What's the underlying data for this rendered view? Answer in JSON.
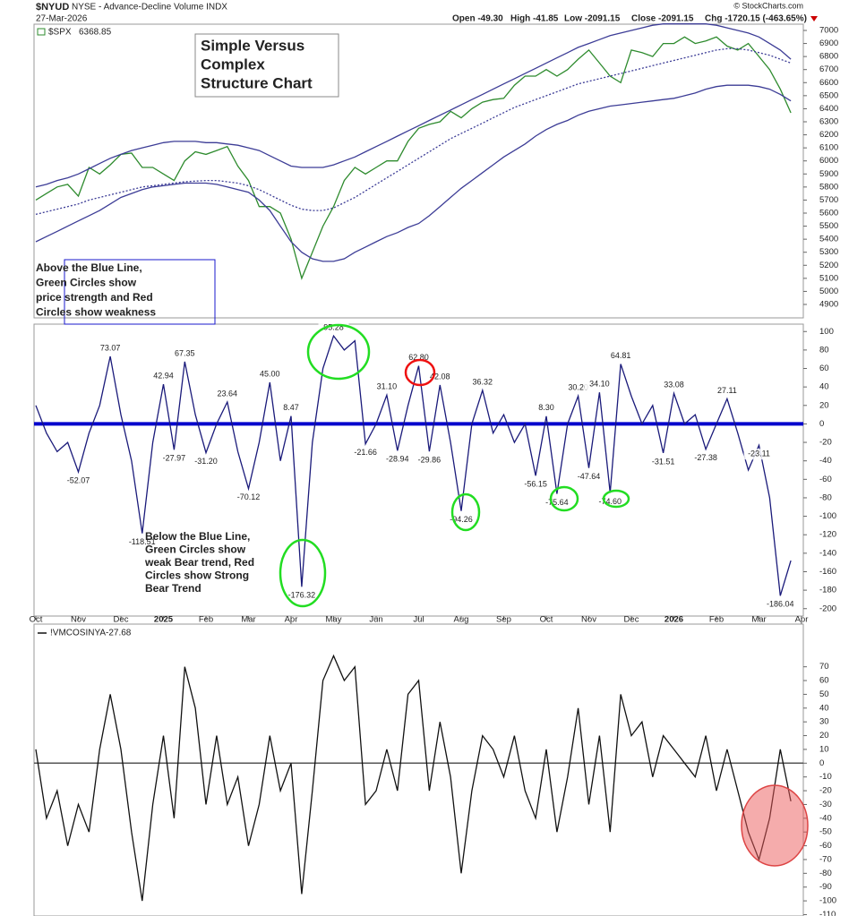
{
  "header": {
    "symbol": "$NYUD",
    "description": "NYSE - Advance-Decline Volume INDX",
    "date": "27-Mar-2026",
    "source": "© StockCharts.com",
    "open": "Open -49.30",
    "high": "High -41.85",
    "low": "Low -2091.15",
    "close": "Close -2091.15",
    "change": "Chg -1720.15 (-463.65%)"
  },
  "chart_data": [
    {
      "type": "line",
      "ylim": [
        4797,
        7048
      ],
      "yticks": [
        4900,
        5000,
        5100,
        5200,
        5300,
        5400,
        5500,
        5600,
        5700,
        5800,
        5900,
        6000,
        6100,
        6200,
        6300,
        6400,
        6500,
        6600,
        6700,
        6800,
        6900,
        7000
      ],
      "annotations": [
        {
          "lines": [
            "Simple Versus",
            "Complex",
            "Structure Chart"
          ],
          "color": "#e00000"
        },
        {
          "lines": [
            "Above the Blue Line,",
            "Green Circles show",
            "price strength and Red",
            "Circles show weakness"
          ],
          "color": "#1a1acc"
        }
      ],
      "series": [
        {
          "name": "$SPX",
          "color": "#2e8b2e",
          "values": [
            5700,
            5750,
            5800,
            5820,
            5730,
            5950,
            5900,
            5970,
            6050,
            6060,
            5950,
            5950,
            5900,
            5850,
            6000,
            6070,
            6050,
            6080,
            6110,
            5960,
            5850,
            5650,
            5650,
            5600,
            5400,
            5100,
            5300,
            5500,
            5650,
            5850,
            5950,
            5900,
            5950,
            6000,
            6000,
            6150,
            6250,
            6280,
            6300,
            6380,
            6330,
            6400,
            6450,
            6470,
            6480,
            6580,
            6650,
            6650,
            6700,
            6650,
            6700,
            6780,
            6850,
            6750,
            6650,
            6600,
            6850,
            6830,
            6800,
            6900,
            6900,
            6950,
            6900,
            6920,
            6950,
            6880,
            6850,
            6900,
            6800,
            6700,
            6550,
            6368.85,
            null
          ]
        },
        {
          "color": "#3c3c96",
          "values": [
            5800,
            5820,
            5850,
            5870,
            5900,
            5940,
            5980,
            6020,
            6050,
            6080,
            6100,
            6120,
            6140,
            6150,
            6150,
            6150,
            6140,
            6140,
            6130,
            6120,
            6100,
            6080,
            6040,
            6000,
            5960,
            5950,
            5950,
            5950,
            5970,
            6000,
            6030,
            6070,
            6110,
            6150,
            6190,
            6230,
            6270,
            6310,
            6350,
            6390,
            6430,
            6470,
            6510,
            6550,
            6590,
            6630,
            6670,
            6710,
            6750,
            6790,
            6830,
            6870,
            6900,
            6930,
            6960,
            6980,
            7000,
            7020,
            7040,
            7050,
            7050,
            7050,
            7050,
            7050,
            7040,
            7020,
            7000,
            6980,
            6950,
            6900,
            6850,
            6780,
            null
          ]
        },
        {
          "color": "#3c3c96",
          "dash": true,
          "values": [
            5590,
            5610,
            5630,
            5650,
            5670,
            5700,
            5720,
            5740,
            5760,
            5780,
            5800,
            5810,
            5820,
            5830,
            5840,
            5845,
            5850,
            5850,
            5840,
            5830,
            5810,
            5780,
            5740,
            5700,
            5660,
            5630,
            5620,
            5620,
            5640,
            5680,
            5720,
            5770,
            5820,
            5870,
            5920,
            5970,
            6020,
            6070,
            6120,
            6170,
            6210,
            6250,
            6290,
            6330,
            6370,
            6410,
            6440,
            6470,
            6500,
            6530,
            6560,
            6590,
            6610,
            6630,
            6650,
            6670,
            6690,
            6710,
            6730,
            6750,
            6770,
            6790,
            6810,
            6830,
            6850,
            6860,
            6860,
            6850,
            6830,
            6810,
            6780,
            6750,
            null
          ]
        },
        {
          "color": "#3c3c96",
          "values": [
            5380,
            5420,
            5460,
            5500,
            5540,
            5580,
            5620,
            5670,
            5720,
            5750,
            5780,
            5800,
            5810,
            5820,
            5830,
            5830,
            5830,
            5820,
            5800,
            5780,
            5760,
            5700,
            5620,
            5500,
            5380,
            5300,
            5250,
            5230,
            5230,
            5250,
            5300,
            5340,
            5380,
            5420,
            5450,
            5490,
            5520,
            5580,
            5650,
            5720,
            5790,
            5850,
            5910,
            5970,
            6030,
            6080,
            6130,
            6190,
            6240,
            6280,
            6310,
            6350,
            6380,
            6400,
            6420,
            6430,
            6440,
            6450,
            6460,
            6470,
            6480,
            6500,
            6520,
            6550,
            6570,
            6580,
            6580,
            6580,
            6570,
            6550,
            6510,
            6460,
            null
          ]
        }
      ]
    },
    {
      "type": "line",
      "ylim": [
        -208,
        108
      ],
      "yticks": [
        -200,
        -180,
        -160,
        -140,
        -120,
        -100,
        -80,
        -60,
        -40,
        -20,
        0,
        20,
        40,
        60,
        80,
        100
      ],
      "hline": 0,
      "hline_color": "#0000cc",
      "categories": [
        "Oct",
        null,
        null,
        null,
        "Nov",
        null,
        null,
        null,
        "Dec",
        null,
        null,
        null,
        "2025",
        null,
        null,
        null,
        "Feb",
        null,
        null,
        null,
        "Mar",
        null,
        null,
        null,
        "Apr",
        null,
        null,
        null,
        "May",
        null,
        null,
        null,
        "Jun",
        null,
        null,
        null,
        "Jul",
        null,
        null,
        null,
        "Aug",
        null,
        null,
        null,
        "Sep",
        null,
        null,
        null,
        "Oct",
        null,
        null,
        null,
        "Nov",
        null,
        null,
        null,
        "Dec",
        null,
        null,
        null,
        "2026",
        null,
        null,
        null,
        "Feb",
        null,
        null,
        null,
        "Mar",
        null,
        null,
        null,
        "Apr"
      ],
      "annotations": [
        {
          "lines": [
            "Below the Blue Line,",
            "Green Circles show",
            "weak Bear trend, Red",
            "Circles show Strong",
            "Bear Trend"
          ],
          "color": "#e00000"
        }
      ],
      "series": [
        {
          "color": "#1a1a7a",
          "values": [
            20,
            -10,
            -30,
            -20,
            -52.07,
            -10,
            20,
            73.07,
            10,
            -40,
            -118.51,
            -20,
            42.94,
            -27.97,
            67.35,
            10,
            -31.2,
            0,
            23.64,
            -30,
            -70.12,
            -20,
            45,
            -40,
            8.47,
            -176.32,
            -20,
            60,
            95.28,
            80,
            90,
            -21.66,
            0,
            31.1,
            -28.94,
            20,
            62.8,
            -29.86,
            42.08,
            -20,
            -94.26,
            0,
            36.32,
            -10,
            10,
            -20,
            0,
            -56.15,
            8.3,
            -75.64,
            0,
            30.2,
            -47.64,
            34.1,
            -74.6,
            64.81,
            30,
            0,
            20,
            -31.51,
            33.08,
            0,
            10,
            -27.38,
            0,
            27.11,
            -10,
            -50,
            -23.11,
            -80,
            -186.04,
            -148,
            null
          ],
          "value_labels": [
            null,
            null,
            null,
            null,
            "-52.07",
            null,
            null,
            "73.07",
            null,
            null,
            "-118.51",
            null,
            "42.94",
            "-27.97",
            "67.35",
            null,
            "-31.20",
            null,
            "23.64",
            null,
            "-70.12",
            null,
            "45.00",
            null,
            "8.47",
            "-176.32",
            null,
            null,
            "95.28",
            null,
            null,
            "-21.66",
            null,
            "31.10",
            "-28.94",
            null,
            "62.80",
            "-29.86",
            "42.08",
            null,
            "-94.26",
            null,
            "36.32",
            null,
            null,
            null,
            null,
            "-56.15",
            "8.30",
            "-75.64",
            null,
            "30.20",
            "-47.64",
            "34.10",
            "-74.60",
            "64.81",
            null,
            null,
            null,
            "-31.51",
            "33.08",
            null,
            null,
            "-27.38",
            null,
            "27.11",
            null,
            null,
            "-23.11",
            null,
            "-186.04",
            null,
            null
          ]
        }
      ]
    },
    {
      "type": "line",
      "ylim": [
        -111,
        101
      ],
      "yticks": [
        -110,
        -100,
        -90,
        -80,
        -70,
        -60,
        -50,
        -40,
        -30,
        -20,
        -10,
        0,
        10,
        20,
        30,
        40,
        50,
        60,
        70
      ],
      "hline": 0,
      "hline_color": "#555555",
      "series": [
        {
          "name": "!VMCOSINYA",
          "color": "#111111",
          "values": [
            10,
            -40,
            -20,
            -60,
            -30,
            -50,
            10,
            50,
            10,
            -50,
            -100,
            -30,
            20,
            -40,
            70,
            40,
            -30,
            20,
            -30,
            -10,
            -60,
            -30,
            20,
            -20,
            0,
            -95,
            -20,
            60,
            78,
            60,
            70,
            -30,
            -20,
            10,
            -20,
            50,
            60,
            -20,
            30,
            -10,
            -80,
            -20,
            20,
            10,
            -10,
            20,
            -20,
            -40,
            10,
            -50,
            -10,
            40,
            -30,
            20,
            -50,
            50,
            20,
            30,
            -10,
            20,
            10,
            0,
            -10,
            20,
            -20,
            10,
            -20,
            -50,
            -70,
            -40,
            10,
            -27.68,
            null
          ]
        }
      ]
    }
  ]
}
